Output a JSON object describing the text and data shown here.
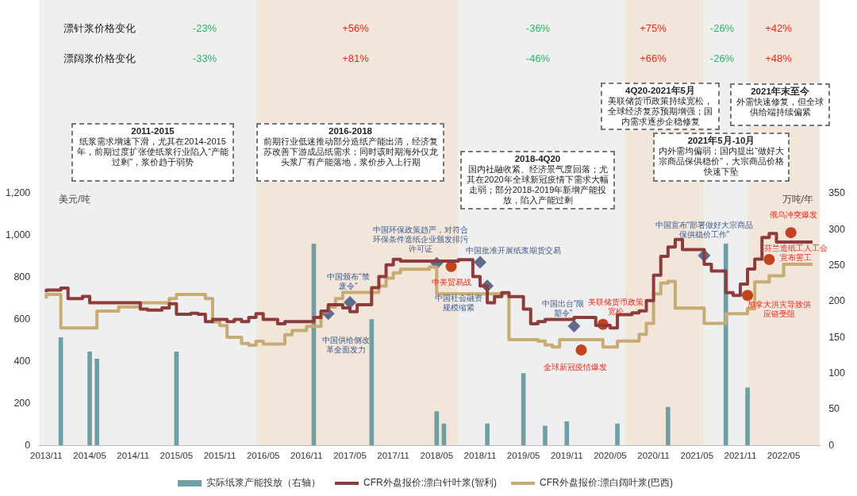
{
  "chart_data": {
    "type": "step",
    "ylabel": "美元/吨",
    "y2label": "万吨/年",
    "xlim": [
      "2013-10",
      "2022-10"
    ],
    "xticks": [
      {
        "value": "2013-11",
        "label": "2013/11"
      },
      {
        "value": "2014-05",
        "label": "2014/05"
      },
      {
        "value": "2014-11",
        "label": "2014/11"
      },
      {
        "value": "2015-05",
        "label": "2015/05"
      },
      {
        "value": "2015-11",
        "label": "2015/11"
      },
      {
        "value": "2016-05",
        "label": "2016/05"
      },
      {
        "value": "2016-11",
        "label": "2016/11"
      },
      {
        "value": "2017-05",
        "label": "2017/05"
      },
      {
        "value": "2017-11",
        "label": "2017/11"
      },
      {
        "value": "2018-05",
        "label": "2018/05"
      },
      {
        "value": "2018-11",
        "label": "2018/11"
      },
      {
        "value": "2019-05",
        "label": "2019/05"
      },
      {
        "value": "2019-11",
        "label": "2019/11"
      },
      {
        "value": "2020-05",
        "label": "2020/05"
      },
      {
        "value": "2020-11",
        "label": "2020/11"
      },
      {
        "value": "2021-05",
        "label": "2021/05"
      },
      {
        "value": "2021-11",
        "label": "2021/11"
      },
      {
        "value": "2022-05",
        "label": "2022/05"
      }
    ],
    "ylim": [
      0,
      1200
    ],
    "yticks": [
      0,
      200,
      400,
      600,
      800,
      {
        "value": 1000,
        "label": "1,000"
      },
      {
        "value": 1200,
        "label": "1,200"
      }
    ],
    "y2lim": [
      0,
      350
    ],
    "y2ticks": [
      0,
      50,
      100,
      150,
      200,
      250,
      300,
      350
    ],
    "grid": false,
    "legend": "bottom",
    "marker": "none",
    "line_style": "solid",
    "bands": [
      {
        "axis": "x",
        "from": "2013-10",
        "to": "2016-04",
        "color": "#efefef"
      },
      {
        "axis": "x",
        "from": "2016-04",
        "to": "2018-08",
        "color": "#f2e6da"
      },
      {
        "axis": "x",
        "from": "2018-08",
        "to": "2020-07",
        "color": "#efefef"
      },
      {
        "axis": "x",
        "from": "2020-07",
        "to": "2021-06",
        "color": "#f2e6da"
      },
      {
        "axis": "x",
        "from": "2021-06",
        "to": "2021-12",
        "color": "#efefef"
      },
      {
        "axis": "x",
        "from": "2021-12",
        "to": "2022-10",
        "color": "#f2e6da"
      }
    ],
    "series": [
      {
        "name": "实际纸浆产能投放（右轴）",
        "type": "bar",
        "axis": "y2",
        "color": "#6f9fa5",
        "x": [
          "2014-01",
          "2014-05",
          "2014-06",
          "2015-05",
          "2016-12",
          "2017-08",
          "2018-05",
          "2018-06",
          "2018-12",
          "2019-05",
          "2019-08",
          "2019-11",
          "2020-06",
          "2021-01",
          "2021-09",
          "2021-12"
        ],
        "values": [
          150,
          130,
          120,
          130,
          280,
          175,
          47,
          30,
          30,
          100,
          27,
          33,
          30,
          53,
          280,
          80
        ]
      },
      {
        "name": "CFR外盘报价:漂白针叶浆(智利)",
        "color": "#8e3b3b",
        "x": [
          "2013-11",
          "2014-01",
          "2014-02",
          "2014-04",
          "2014-05",
          "2014-12",
          "2015-01",
          "2015-03",
          "2015-04",
          "2015-05",
          "2015-07",
          "2015-08",
          "2015-09",
          "2015-10",
          "2015-12",
          "2016-01",
          "2016-02",
          "2016-03",
          "2016-04",
          "2016-05",
          "2016-07",
          "2016-08",
          "2016-12",
          "2017-01",
          "2017-02",
          "2017-04",
          "2017-05",
          "2017-06",
          "2017-08",
          "2017-09",
          "2017-10",
          "2017-11",
          "2017-12",
          "2018-08",
          "2018-10",
          "2018-11",
          "2018-12",
          "2019-01",
          "2019-02",
          "2019-03",
          "2019-05",
          "2019-06",
          "2019-07",
          "2019-08",
          "2019-12",
          "2020-03",
          "2020-05",
          "2020-06",
          "2020-08",
          "2020-09",
          "2020-10",
          "2020-11",
          "2020-12",
          "2021-01",
          "2021-02",
          "2021-03",
          "2021-06",
          "2021-07",
          "2021-09",
          "2021-10",
          "2021-11",
          "2021-12",
          "2022-01",
          "2022-02",
          "2022-03",
          "2022-04",
          "2022-08",
          "2022-09"
        ],
        "values": [
          730,
          740,
          750,
          700,
          710,
          680,
          650,
          645,
          655,
          675,
          625,
          630,
          625,
          590,
          600,
          590,
          600,
          590,
          610,
          628,
          600,
          580,
          590,
          610,
          640,
          670,
          655,
          637,
          670,
          752,
          805,
          860,
          887,
          878,
          885,
          805,
          760,
          680,
          709,
          728,
          709,
          650,
          580,
          590,
          600,
          610,
          572,
          560,
          623,
          632,
          641,
          690,
          811,
          901,
          946,
          982,
          933,
          863,
          831,
          728,
          715,
          769,
          841,
          888,
          991,
          1010,
          969,
          969
        ]
      },
      {
        "name": "CFR外盘报价:漂白阔叶浆(巴西)",
        "color": "#c8ab72",
        "x": [
          "2013-11",
          "2014-01",
          "2014-06",
          "2014-09",
          "2014-12",
          "2015-04",
          "2015-05",
          "2015-09",
          "2015-10",
          "2015-11",
          "2015-12",
          "2016-02",
          "2016-03",
          "2016-04",
          "2016-05",
          "2016-08",
          "2016-09",
          "2016-11",
          "2017-01",
          "2017-02",
          "2017-03",
          "2017-04",
          "2017-09",
          "2017-10",
          "2017-11",
          "2017-12",
          "2018-04",
          "2018-05",
          "2019-03",
          "2019-07",
          "2019-08",
          "2019-09",
          "2019-10",
          "2020-04",
          "2020-06",
          "2020-09",
          "2020-10",
          "2020-11",
          "2020-12",
          "2021-01",
          "2021-02",
          "2021-06",
          "2021-09",
          "2021-12",
          "2022-01",
          "2022-03",
          "2022-05",
          "2022-06",
          "2022-09"
        ],
        "values": [
          700,
          720,
          560,
          640,
          660,
          680,
          700,
          720,
          700,
          588,
          571,
          515,
          486,
          477,
          496,
          483,
          528,
          547,
          567,
          637,
          659,
          700,
          729,
          759,
          797,
          823,
          840,
          850,
          722,
          504,
          497,
          478,
          469,
          504,
          469,
          497,
          529,
          581,
          722,
          773,
          782,
          654,
          581,
          628,
          651,
          779,
          808,
          863,
          863
        ]
      }
    ],
    "annotations": [
      "漂针浆价格变化",
      "漂阔浆价格变化",
      "-23%",
      "-33%",
      "+56%",
      "+81%",
      "-36%",
      "-46%",
      "+75%",
      "+66%",
      "-26%",
      "-26%",
      "+42%",
      "+48%",
      "2011-2015",
      "纸浆需求增速下滑，尤其在2014-2015年，前期过度扩张使纸浆行业陷入“产能过剩”，浆价趋于弱势",
      "2016-2018",
      "前期行业低迷推动部分造纸产能出清，经济复苏改善下游成品纸需求；同时该时期海外仅龙头浆厂有产能落地，浆价步入上行期",
      "2018-4Q20",
      "国内社融收紧、经济景气度回落；尤其在2020年全球新冠疫情下需求大幅走弱；部分2018-2019年新增产能投放，陷入产能过剩",
      "4Q20-2021年5月",
      "美联储货币政策持续宽松，全球经济复苏预期增强；国内需求逐步企稳修复",
      "2021年5月-10月",
      "内外需均偏弱；国内提出“做好大宗商品保供稳价”，大宗商品价格快速下坠",
      "2021年末至今",
      "外需快速修复，但全球供给端持续偏紧",
      {
        "text": "中国供给侧改革全面发力",
        "x": "2017-02",
        "y": 628
      },
      {
        "text": "中国颁布“禁废令”",
        "x": "2017-05",
        "y": 682
      },
      {
        "text": "中国环保政策趋严，对符合环保条件造纸企业颁发排污许可证",
        "x": "2018-05",
        "y": 868
      },
      {
        "text": "中美贸易战",
        "x": "2018-07",
        "y": 853
      },
      {
        "text": "中国批准开展纸浆期货交易",
        "x": "2018-11",
        "y": 873
      },
      {
        "text": "中国社会融资规模缩紧",
        "x": "2018-12",
        "y": 760
      },
      {
        "text": "中国出台“限塑令”",
        "x": "2019-12",
        "y": 568
      },
      {
        "text": "全球新冠疫情爆发",
        "x": "2020-01",
        "y": 455
      },
      {
        "text": "美联储货币政策宽松",
        "x": "2020-04",
        "y": 577
      },
      {
        "text": "中国宣布“部署做好大宗商品保供稳价工作”",
        "x": "2021-06",
        "y": 905
      },
      {
        "text": "加拿大洪灾导致供应链受阻",
        "x": "2021-12",
        "y": 715
      },
      {
        "text": "芬兰造纸工人工会宣布罢工",
        "x": "2022-03",
        "y": 886
      },
      {
        "text": "俄乌冲突爆发",
        "x": "2022-06",
        "y": 1014
      }
    ]
  }
}
